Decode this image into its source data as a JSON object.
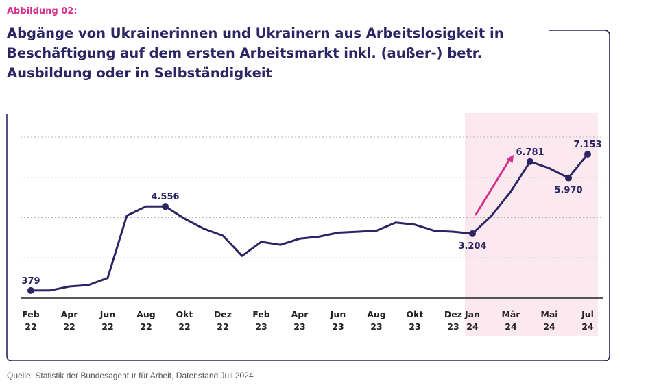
{
  "figure_label": "Abbildung 02:",
  "title": "Abgänge von Ukrainerinnen und Ukrainern aus Arbeitslosigkeit in Beschäftigung auf dem ersten Arbeitsmarkt inkl. (außer-) betr. Ausbildung oder in Selbständigkeit",
  "source": "Quelle: Statistik der Bundesagentur für Arbeit, Datenstand Juli 2024",
  "colors": {
    "line": "#2b2563",
    "accent": "#d6308f",
    "highlight": "#fbe9ef",
    "grid": "#b5b5b5"
  },
  "chart_data": {
    "type": "line",
    "x": [
      "Feb 22",
      "Mär 22",
      "Apr 22",
      "Mai 22",
      "Jun 22",
      "Jul 22",
      "Aug 22",
      "Sep 22",
      "Okt 22",
      "Nov 22",
      "Dez 22",
      "Jan 23",
      "Feb 23",
      "Mär 23",
      "Apr 23",
      "Mai 23",
      "Jun 23",
      "Jul 23",
      "Aug 23",
      "Sep 23",
      "Okt 23",
      "Nov 23",
      "Dez 23",
      "Jan 24",
      "Feb 24",
      "Mär 24",
      "Apr 24",
      "Mai 24",
      "Jun 24",
      "Jul 24"
    ],
    "series": [
      {
        "values": [
          379,
          380,
          580,
          650,
          1000,
          4100,
          4556,
          4556,
          3950,
          3450,
          3100,
          2100,
          2800,
          2650,
          2950,
          3050,
          3250,
          3300,
          3350,
          3750,
          3650,
          3350,
          3300,
          3204,
          4100,
          5300,
          6781,
          6450,
          5970,
          7153
        ]
      }
    ],
    "ticks": [
      {
        "index": 0,
        "month": "Feb",
        "year": "22"
      },
      {
        "index": 2,
        "month": "Apr",
        "year": "22"
      },
      {
        "index": 4,
        "month": "Jun",
        "year": "22"
      },
      {
        "index": 6,
        "month": "Aug",
        "year": "22"
      },
      {
        "index": 8,
        "month": "Okt",
        "year": "22"
      },
      {
        "index": 10,
        "month": "Dez",
        "year": "22"
      },
      {
        "index": 12,
        "month": "Feb",
        "year": "23"
      },
      {
        "index": 14,
        "month": "Apr",
        "year": "23"
      },
      {
        "index": 16,
        "month": "Jun",
        "year": "23"
      },
      {
        "index": 18,
        "month": "Aug",
        "year": "23"
      },
      {
        "index": 20,
        "month": "Okt",
        "year": "23"
      },
      {
        "index": 22,
        "month": "Dez",
        "year": "23"
      },
      {
        "index": 23,
        "month": "Jan",
        "year": "24"
      },
      {
        "index": 25,
        "month": "Mär",
        "year": "24"
      },
      {
        "index": 27,
        "month": "Mai",
        "year": "24"
      },
      {
        "index": 29,
        "month": "Jul",
        "year": "24"
      }
    ],
    "highlighted_range": [
      "Jan 24",
      "Jul 24"
    ],
    "annotations": [
      {
        "index": 0,
        "label": "379",
        "position": "above"
      },
      {
        "index": 7,
        "label": "4.556",
        "position": "above"
      },
      {
        "index": 23,
        "label": "3.204",
        "position": "below"
      },
      {
        "index": 26,
        "label": "6.781",
        "position": "above"
      },
      {
        "index": 28,
        "label": "5.970",
        "position": "below"
      },
      {
        "index": 29,
        "label": "7.153",
        "position": "above"
      }
    ],
    "trend_arrow": {
      "from_index": 23,
      "to_index": 26,
      "direction": "up"
    },
    "ylim": [
      0,
      8000
    ],
    "gridlines": [
      2000,
      4000,
      6000,
      8000
    ],
    "grid": "horizontal dotted",
    "legend": "none"
  }
}
